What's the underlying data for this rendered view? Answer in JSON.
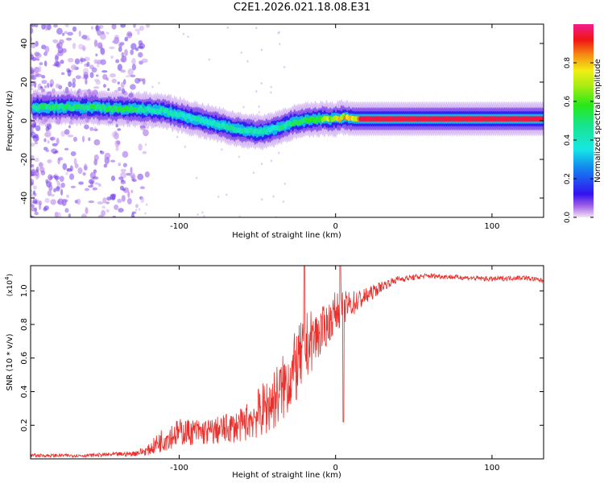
{
  "title": "C2E1.2026.021.18.08.E31",
  "chart_data": [
    {
      "type": "heatmap",
      "name": "spectrogram",
      "xlabel": "Height of straight line (km)",
      "ylabel": "Frequency (Hz)",
      "xlim": [
        -195,
        133
      ],
      "ylim": [
        -50,
        50
      ],
      "xticks": [
        -100,
        0,
        100
      ],
      "yticks": [
        -40,
        -20,
        0,
        20,
        40
      ],
      "colorbar": {
        "label": "Normalized spectral amplitude",
        "range": [
          0,
          1
        ],
        "ticks": [
          0.0,
          0.2,
          0.4,
          0.6,
          0.8
        ]
      },
      "ridge": {
        "x": [
          -193,
          -160,
          -135,
          -125,
          -110,
          -95,
          -80,
          -65,
          -50,
          -42,
          -35,
          -28,
          -20,
          -10,
          0,
          5,
          12,
          15,
          50,
          100,
          133
        ],
        "frequency": [
          7,
          7,
          6,
          6,
          5,
          2,
          -1,
          -4,
          -6,
          -5,
          -3,
          -1,
          0,
          1,
          1,
          2,
          1,
          1,
          1,
          1,
          1
        ],
        "amplitude": [
          0.55,
          0.55,
          0.6,
          0.5,
          0.5,
          0.45,
          0.45,
          0.5,
          0.45,
          0.45,
          0.5,
          0.55,
          0.6,
          0.7,
          0.8,
          0.85,
          0.9,
          0.95,
          0.95,
          0.95,
          0.95
        ]
      }
    },
    {
      "type": "line",
      "name": "snr",
      "xlabel": "Height of straight line (km)",
      "ylabel": "SNR (10 * v/v)",
      "yscale_label": "(x10",
      "yscale_exp": "4",
      "xlim": [
        -195,
        133
      ],
      "ylim": [
        0,
        1.15
      ],
      "xticks": [
        -100,
        0,
        100
      ],
      "yticks": [
        0.2,
        0.4,
        0.6,
        0.8,
        1.0
      ],
      "color": "#e8302c",
      "envelope_x": [
        -195,
        -160,
        -130,
        -120,
        -110,
        -100,
        -80,
        -60,
        -45,
        -35,
        -25,
        -18,
        -10,
        -5,
        0,
        10,
        20,
        30,
        40,
        60,
        80,
        100,
        120,
        133
      ],
      "envelope_y": [
        0.02,
        0.02,
        0.03,
        0.05,
        0.12,
        0.16,
        0.16,
        0.2,
        0.3,
        0.4,
        0.55,
        0.68,
        0.75,
        0.8,
        0.88,
        0.92,
        0.97,
        1.03,
        1.07,
        1.09,
        1.08,
        1.07,
        1.08,
        1.06
      ],
      "noise_y": [
        0.01,
        0.01,
        0.015,
        0.03,
        0.08,
        0.08,
        0.08,
        0.1,
        0.17,
        0.2,
        0.22,
        0.2,
        0.15,
        0.12,
        0.12,
        0.08,
        0.05,
        0.03,
        0.02,
        0.015,
        0.015,
        0.015,
        0.015,
        0.015
      ]
    }
  ]
}
